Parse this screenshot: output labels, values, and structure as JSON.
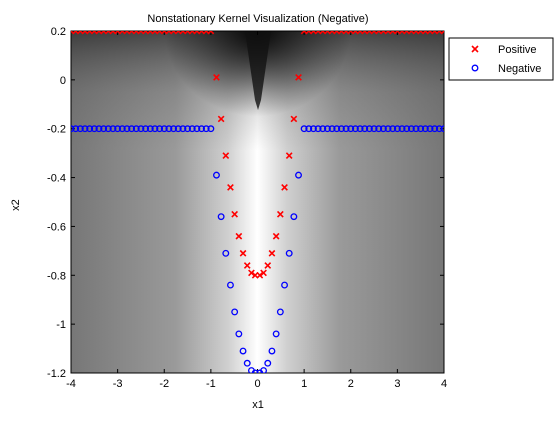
{
  "chart_data": {
    "type": "scatter",
    "title": "Nonstationary Kernel Visualization (Negative)",
    "xlabel": "x1",
    "ylabel": "x2",
    "xlim": [
      -4,
      4
    ],
    "ylim": [
      -1.2,
      0.2
    ],
    "xticks": [
      -4,
      -3,
      -2,
      -1,
      0,
      1,
      2,
      3,
      4
    ],
    "yticks": [
      -1.2,
      -1,
      -0.8,
      -0.6,
      -0.4,
      -0.2,
      0,
      0.2
    ],
    "xtick_labels": [
      "-4",
      "-3",
      "-2",
      "-1",
      "0",
      "1",
      "2",
      "3",
      "4"
    ],
    "ytick_labels": [
      "-1.2",
      "-1",
      "-0.8",
      "-0.6",
      "-0.4",
      "-0.2",
      "0",
      "0.2"
    ],
    "background": "grayscale kernel heatmap",
    "grid": false,
    "legend_position": "outside top-right",
    "series": [
      {
        "name": "Positive",
        "marker": "x",
        "color": "#ff0000",
        "points": [
          [
            -4.0,
            0.2
          ],
          [
            -3.9,
            0.2
          ],
          [
            -3.8,
            0.2
          ],
          [
            -3.7,
            0.2
          ],
          [
            -3.6,
            0.2
          ],
          [
            -3.5,
            0.2
          ],
          [
            -3.4,
            0.2
          ],
          [
            -3.3,
            0.2
          ],
          [
            -3.2,
            0.2
          ],
          [
            -3.1,
            0.2
          ],
          [
            -3.0,
            0.2
          ],
          [
            -2.9,
            0.2
          ],
          [
            -2.8,
            0.2
          ],
          [
            -2.7,
            0.2
          ],
          [
            -2.6,
            0.2
          ],
          [
            -2.5,
            0.2
          ],
          [
            -2.4,
            0.2
          ],
          [
            -2.3,
            0.2
          ],
          [
            -2.2,
            0.2
          ],
          [
            -2.1,
            0.2
          ],
          [
            -2.0,
            0.2
          ],
          [
            -1.9,
            0.2
          ],
          [
            -1.8,
            0.2
          ],
          [
            -1.7,
            0.2
          ],
          [
            -1.6,
            0.2
          ],
          [
            -1.5,
            0.2
          ],
          [
            -1.4,
            0.2
          ],
          [
            -1.3,
            0.2
          ],
          [
            -1.2,
            0.2
          ],
          [
            -1.1,
            0.2
          ],
          [
            -1.0,
            0.2
          ],
          [
            1.0,
            0.2
          ],
          [
            1.1,
            0.2
          ],
          [
            1.2,
            0.2
          ],
          [
            1.3,
            0.2
          ],
          [
            1.4,
            0.2
          ],
          [
            1.5,
            0.2
          ],
          [
            1.6,
            0.2
          ],
          [
            1.7,
            0.2
          ],
          [
            1.8,
            0.2
          ],
          [
            1.9,
            0.2
          ],
          [
            2.0,
            0.2
          ],
          [
            2.1,
            0.2
          ],
          [
            2.2,
            0.2
          ],
          [
            2.3,
            0.2
          ],
          [
            2.4,
            0.2
          ],
          [
            2.5,
            0.2
          ],
          [
            2.6,
            0.2
          ],
          [
            2.7,
            0.2
          ],
          [
            2.8,
            0.2
          ],
          [
            2.9,
            0.2
          ],
          [
            3.0,
            0.2
          ],
          [
            3.1,
            0.2
          ],
          [
            3.2,
            0.2
          ],
          [
            3.3,
            0.2
          ],
          [
            3.4,
            0.2
          ],
          [
            3.5,
            0.2
          ],
          [
            3.6,
            0.2
          ],
          [
            3.7,
            0.2
          ],
          [
            3.8,
            0.2
          ],
          [
            3.9,
            0.2
          ],
          [
            4.0,
            0.2
          ],
          [
            -0.88,
            0.01
          ],
          [
            -0.78,
            -0.16
          ],
          [
            -0.68,
            -0.31
          ],
          [
            -0.58,
            -0.44
          ],
          [
            -0.49,
            -0.55
          ],
          [
            -0.4,
            -0.64
          ],
          [
            -0.31,
            -0.71
          ],
          [
            -0.22,
            -0.76
          ],
          [
            -0.13,
            -0.79
          ],
          [
            -0.05,
            -0.8
          ],
          [
            0.05,
            -0.8
          ],
          [
            0.13,
            -0.79
          ],
          [
            0.22,
            -0.76
          ],
          [
            0.31,
            -0.71
          ],
          [
            0.4,
            -0.64
          ],
          [
            0.49,
            -0.55
          ],
          [
            0.58,
            -0.44
          ],
          [
            0.68,
            -0.31
          ],
          [
            0.78,
            -0.16
          ],
          [
            0.88,
            0.01
          ]
        ]
      },
      {
        "name": "Negative",
        "marker": "o",
        "color": "#0000ff",
        "points": [
          [
            -4.0,
            -0.2
          ],
          [
            -3.9,
            -0.2
          ],
          [
            -3.8,
            -0.2
          ],
          [
            -3.7,
            -0.2
          ],
          [
            -3.6,
            -0.2
          ],
          [
            -3.5,
            -0.2
          ],
          [
            -3.4,
            -0.2
          ],
          [
            -3.3,
            -0.2
          ],
          [
            -3.2,
            -0.2
          ],
          [
            -3.1,
            -0.2
          ],
          [
            -3.0,
            -0.2
          ],
          [
            -2.9,
            -0.2
          ],
          [
            -2.8,
            -0.2
          ],
          [
            -2.7,
            -0.2
          ],
          [
            -2.6,
            -0.2
          ],
          [
            -2.5,
            -0.2
          ],
          [
            -2.4,
            -0.2
          ],
          [
            -2.3,
            -0.2
          ],
          [
            -2.2,
            -0.2
          ],
          [
            -2.1,
            -0.2
          ],
          [
            -2.0,
            -0.2
          ],
          [
            -1.9,
            -0.2
          ],
          [
            -1.8,
            -0.2
          ],
          [
            -1.7,
            -0.2
          ],
          [
            -1.6,
            -0.2
          ],
          [
            -1.5,
            -0.2
          ],
          [
            -1.4,
            -0.2
          ],
          [
            -1.3,
            -0.2
          ],
          [
            -1.2,
            -0.2
          ],
          [
            -1.1,
            -0.2
          ],
          [
            -1.0,
            -0.2
          ],
          [
            1.0,
            -0.2
          ],
          [
            1.1,
            -0.2
          ],
          [
            1.2,
            -0.2
          ],
          [
            1.3,
            -0.2
          ],
          [
            1.4,
            -0.2
          ],
          [
            1.5,
            -0.2
          ],
          [
            1.6,
            -0.2
          ],
          [
            1.7,
            -0.2
          ],
          [
            1.8,
            -0.2
          ],
          [
            1.9,
            -0.2
          ],
          [
            2.0,
            -0.2
          ],
          [
            2.1,
            -0.2
          ],
          [
            2.2,
            -0.2
          ],
          [
            2.3,
            -0.2
          ],
          [
            2.4,
            -0.2
          ],
          [
            2.5,
            -0.2
          ],
          [
            2.6,
            -0.2
          ],
          [
            2.7,
            -0.2
          ],
          [
            2.8,
            -0.2
          ],
          [
            2.9,
            -0.2
          ],
          [
            3.0,
            -0.2
          ],
          [
            3.1,
            -0.2
          ],
          [
            3.2,
            -0.2
          ],
          [
            3.3,
            -0.2
          ],
          [
            3.4,
            -0.2
          ],
          [
            3.5,
            -0.2
          ],
          [
            3.6,
            -0.2
          ],
          [
            3.7,
            -0.2
          ],
          [
            3.8,
            -0.2
          ],
          [
            3.9,
            -0.2
          ],
          [
            4.0,
            -0.2
          ],
          [
            -0.88,
            -0.39
          ],
          [
            -0.78,
            -0.56
          ],
          [
            -0.68,
            -0.71
          ],
          [
            -0.58,
            -0.84
          ],
          [
            -0.49,
            -0.95
          ],
          [
            -0.4,
            -1.04
          ],
          [
            -0.31,
            -1.11
          ],
          [
            -0.22,
            -1.16
          ],
          [
            -0.13,
            -1.19
          ],
          [
            -0.05,
            -1.2
          ],
          [
            0.05,
            -1.2
          ],
          [
            0.13,
            -1.19
          ],
          [
            0.22,
            -1.16
          ],
          [
            0.31,
            -1.11
          ],
          [
            0.4,
            -1.04
          ],
          [
            0.49,
            -0.95
          ],
          [
            0.58,
            -0.84
          ],
          [
            0.68,
            -0.71
          ],
          [
            0.78,
            -0.56
          ],
          [
            0.88,
            -0.39
          ]
        ]
      }
    ]
  }
}
